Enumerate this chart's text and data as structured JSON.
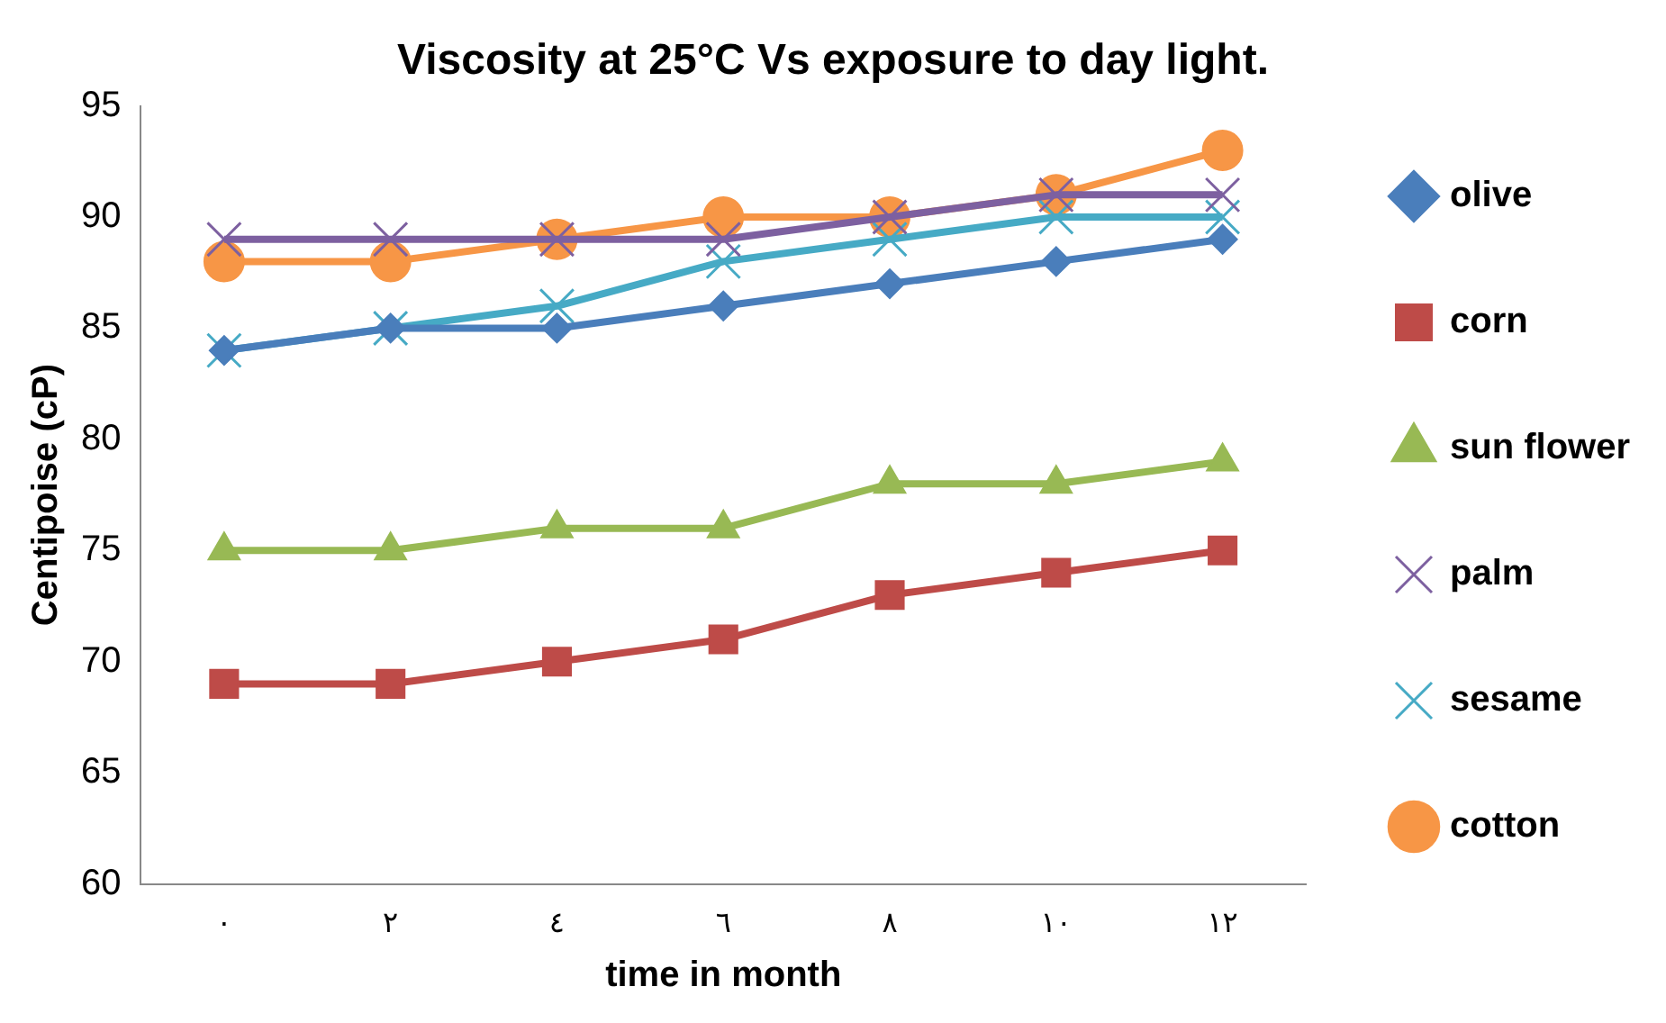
{
  "chart_data": {
    "type": "line",
    "title": "Viscosity at 25°C Vs exposure to day light.",
    "xlabel": "time in month",
    "ylabel": "Centipoise (cP)",
    "categories": [
      "٠",
      "٢",
      "٤",
      "٦",
      "٨",
      "١٠",
      "١٢"
    ],
    "ylim": [
      60,
      95
    ],
    "yticks": [
      60,
      65,
      70,
      75,
      80,
      85,
      90,
      95
    ],
    "grid": false,
    "legend": "right",
    "series": [
      {
        "name": "olive",
        "color": "#4a7ebb",
        "marker": "diamond",
        "values": [
          84,
          85,
          85,
          86,
          87,
          88,
          89
        ]
      },
      {
        "name": "corn",
        "color": "#be4b48",
        "marker": "square",
        "values": [
          69,
          69,
          70,
          71,
          73,
          74,
          75
        ]
      },
      {
        "name": "sun flower",
        "color": "#98b954",
        "marker": "triangle",
        "values": [
          75,
          75,
          76,
          76,
          78,
          78,
          79
        ]
      },
      {
        "name": "palm",
        "color": "#7d60a0",
        "marker": "cross",
        "values": [
          89,
          89,
          89,
          89,
          90,
          91,
          91
        ]
      },
      {
        "name": "sesame",
        "color": "#46aac5",
        "marker": "cross",
        "values": [
          84,
          85,
          86,
          88,
          89,
          90,
          90
        ]
      },
      {
        "name": "cotton",
        "color": "#f79646",
        "marker": "circle",
        "values": [
          88,
          88,
          89,
          90,
          90,
          91,
          93
        ]
      }
    ]
  }
}
